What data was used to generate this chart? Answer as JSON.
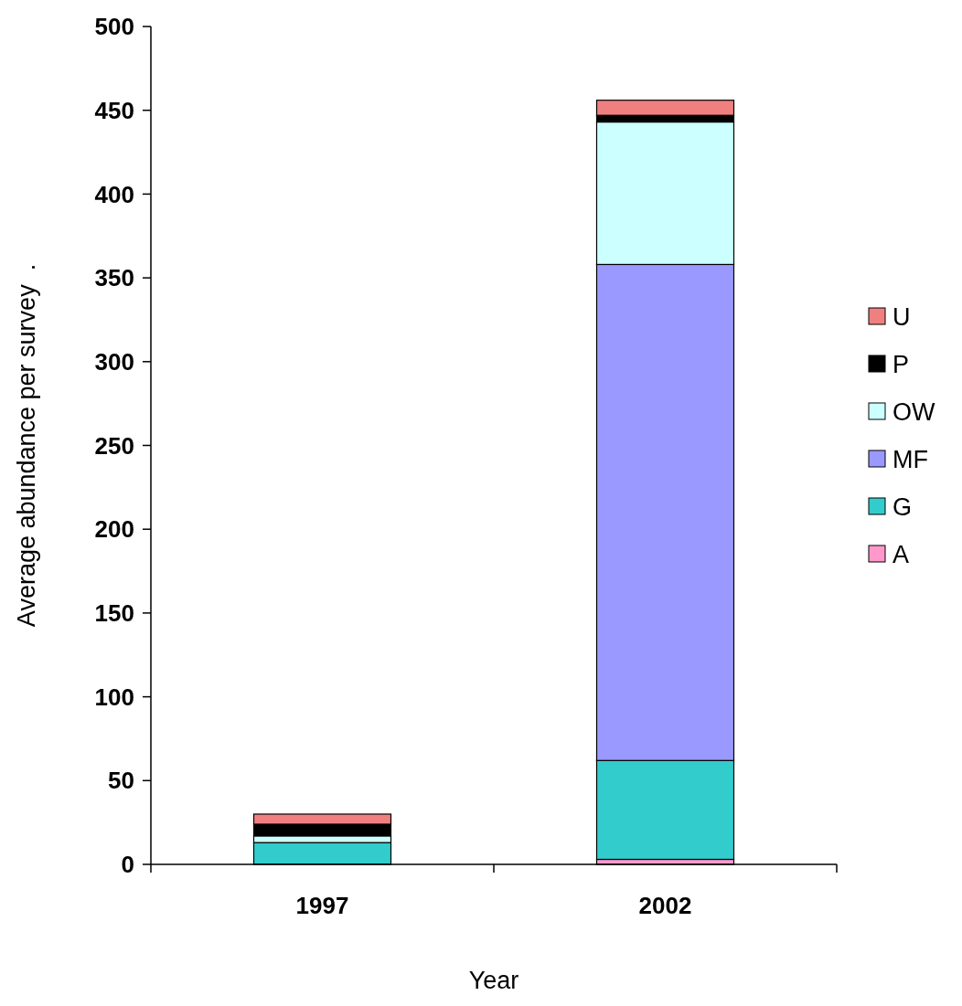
{
  "chart_data": {
    "type": "bar",
    "stacked": true,
    "xlabel": "Year",
    "ylabel": "Average abundance per survey  .",
    "categories": [
      "1997",
      "2002"
    ],
    "series": [
      {
        "name": "A",
        "color": "#ff99cc",
        "values": [
          0,
          3
        ]
      },
      {
        "name": "G",
        "color": "#33cccc",
        "values": [
          13,
          59
        ]
      },
      {
        "name": "MF",
        "color": "#9999ff",
        "values": [
          0,
          296
        ]
      },
      {
        "name": "OW",
        "color": "#ccffff",
        "values": [
          4,
          85
        ]
      },
      {
        "name": "P",
        "color": "#000000",
        "values": [
          7,
          4
        ]
      },
      {
        "name": "U",
        "color": "#f08080",
        "values": [
          6,
          9
        ]
      }
    ],
    "ylim": [
      0,
      500
    ],
    "yticks": [
      0,
      50,
      100,
      150,
      200,
      250,
      300,
      350,
      400,
      450,
      500
    ],
    "grid": false,
    "legend": "right"
  }
}
